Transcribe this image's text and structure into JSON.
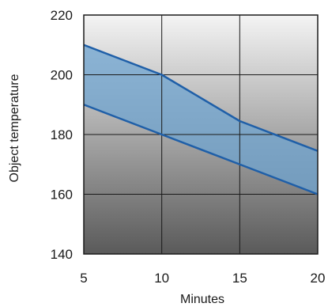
{
  "chart_data": {
    "type": "area",
    "xlabel": "Minutes",
    "ylabel": "Object temperature",
    "xlim": [
      5,
      20
    ],
    "ylim": [
      140,
      220
    ],
    "xticks": [
      5,
      10,
      15,
      20
    ],
    "yticks": [
      140,
      160,
      180,
      200,
      220
    ],
    "grid": true,
    "series": [
      {
        "x": [
          5,
          10,
          15,
          20
        ],
        "values": [
          210,
          200,
          184.5,
          174.5
        ]
      },
      {
        "x": [
          5,
          10,
          15,
          20
        ],
        "values": [
          190,
          180,
          170,
          160
        ]
      }
    ],
    "colors": {
      "line": "#1f5fa8",
      "band_fill": "#6fa4d0",
      "background_top": "#f4f4f4",
      "background_bottom": "#5a5a5a",
      "grid": "#1a1a1a"
    }
  }
}
